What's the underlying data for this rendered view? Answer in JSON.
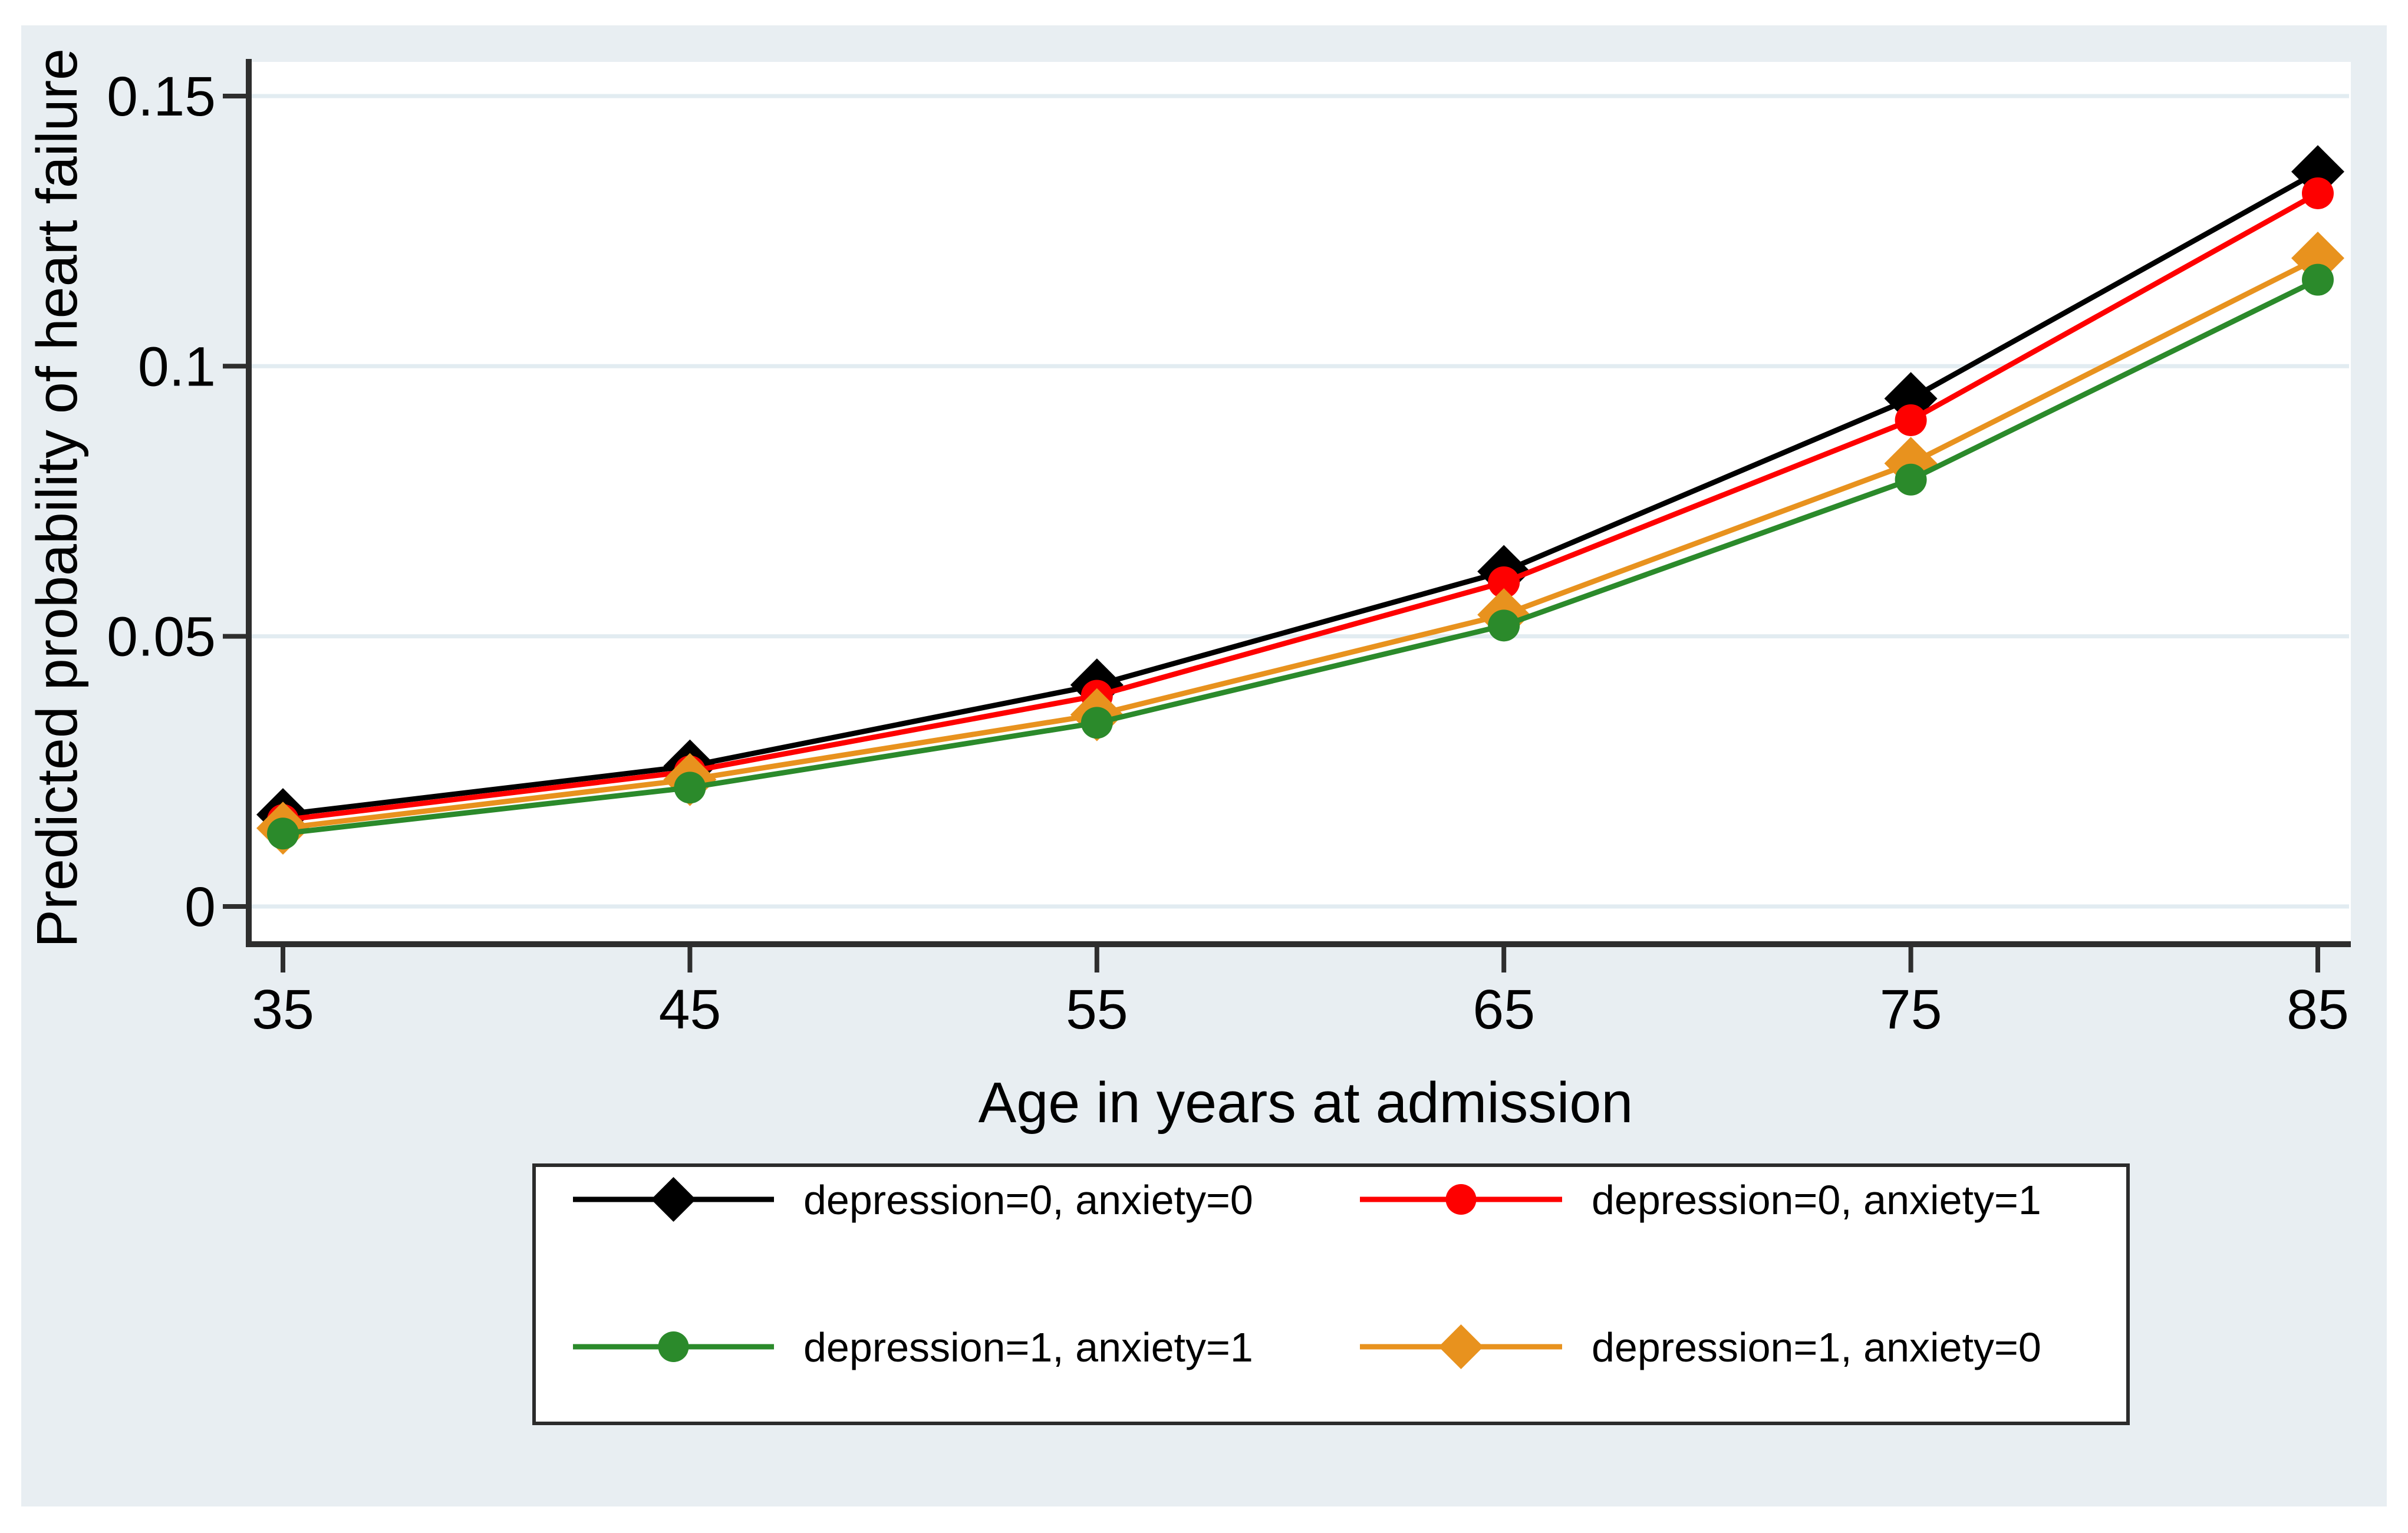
{
  "figure": {
    "background_color": "#E8EEF2",
    "plot_background_color": "#FFFFFF",
    "gridline_color": "#E2ECF1",
    "axis_color": "#2E2E2E",
    "x_axis_title": "Age in years at admission",
    "y_axis_title": "Predicted probability of heart failure"
  },
  "chart_data": {
    "type": "line",
    "title": "",
    "xlabel": "Age in years at admission",
    "ylabel": "Predicted probability of heart failure",
    "x": [
      35,
      45,
      55,
      65,
      75,
      85
    ],
    "x_tick_labels": [
      "35",
      "45",
      "55",
      "65",
      "75",
      "85"
    ],
    "y_tick_labels": [
      "0",
      "0.05",
      "0.1",
      "0.15"
    ],
    "y_tick_values": [
      0,
      0.05,
      0.1,
      0.15
    ],
    "xlim": [
      34,
      86
    ],
    "ylim": [
      -0.007,
      0.156
    ],
    "grid": true,
    "legend_position": "below-plot, boxed, 2x2",
    "series": [
      {
        "name": "depression=0, anxiety=0",
        "color": "#000000",
        "marker": "diamond",
        "values": [
          0.017,
          0.026,
          0.041,
          0.062,
          0.094,
          0.136
        ]
      },
      {
        "name": "depression=0, anxiety=1",
        "color": "#FE0000",
        "marker": "circle",
        "values": [
          0.016,
          0.025,
          0.039,
          0.06,
          0.09,
          0.132
        ]
      },
      {
        "name": "depression=1, anxiety=1",
        "color": "#2B8A2B",
        "marker": "circle",
        "values": [
          0.0135,
          0.022,
          0.034,
          0.052,
          0.079,
          0.116
        ]
      },
      {
        "name": "depression=1, anxiety=0",
        "color": "#E8921E",
        "marker": "diamond",
        "values": [
          0.0145,
          0.0235,
          0.0355,
          0.054,
          0.082,
          0.12
        ]
      }
    ]
  }
}
